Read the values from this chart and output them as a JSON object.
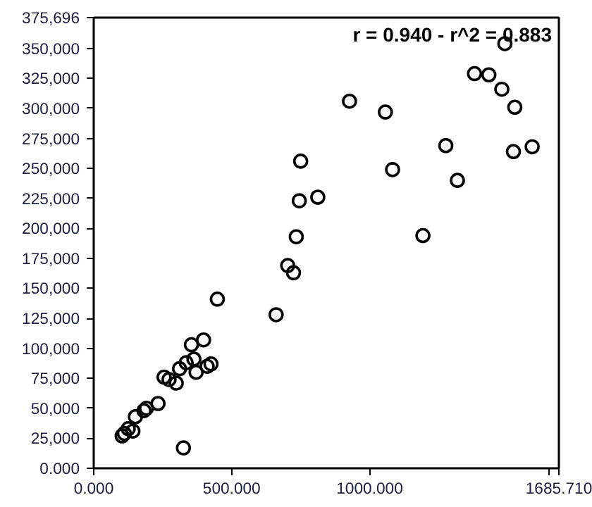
{
  "chart_data": {
    "type": "scatter",
    "marker": "circle",
    "grid": false,
    "annotations": [
      "r = 0.940 - r^2 = 0.883"
    ],
    "xlim": [
      0,
      1685.71
    ],
    "ylim": [
      0,
      375696
    ],
    "xticks": [
      {
        "value": 0,
        "label": "0.000"
      },
      {
        "value": 500,
        "label": "500.000"
      },
      {
        "value": 1000,
        "label": "1000.000"
      },
      {
        "value": 1650,
        "label": null
      },
      {
        "value": 1685.71,
        "label": "1685.710"
      }
    ],
    "yticks": [
      {
        "value": 0,
        "label": "0.000"
      },
      {
        "value": 25000,
        "label": "25,000"
      },
      {
        "value": 50000,
        "label": "50,000"
      },
      {
        "value": 75000,
        "label": "75,000"
      },
      {
        "value": 100000,
        "label": "100,000"
      },
      {
        "value": 125000,
        "label": "125,000"
      },
      {
        "value": 150000,
        "label": "150,000"
      },
      {
        "value": 175000,
        "label": "175,000"
      },
      {
        "value": 200000,
        "label": "200,000"
      },
      {
        "value": 225000,
        "label": "225,000"
      },
      {
        "value": 250000,
        "label": "250,000"
      },
      {
        "value": 275000,
        "label": "275,000"
      },
      {
        "value": 300000,
        "label": "300,000"
      },
      {
        "value": 325000,
        "label": "325,000"
      },
      {
        "value": 350000,
        "label": "350,000"
      },
      {
        "value": 375696,
        "label": "375,696"
      }
    ],
    "series": [
      {
        "color": "#000000",
        "x": [
          1490,
          1380,
          1432,
          1479,
          1526,
          927,
          1057,
          1276,
          1521,
          1589,
          1083,
          1318,
          750,
          745,
          812,
          1193,
          734,
          703,
          724,
          448,
          661,
          398,
          354,
          363,
          335,
          311,
          371,
          411,
          425,
          255,
          273,
          299,
          233,
          191,
          182,
          151,
          125,
          142,
          111,
          103,
          325
        ],
        "values": [
          354000,
          329000,
          328000,
          316000,
          301000,
          306000,
          297000,
          269000,
          264000,
          268000,
          249000,
          240000,
          256000,
          223000,
          226000,
          194000,
          193000,
          169000,
          163000,
          141000,
          128000,
          107000,
          103000,
          91000,
          88000,
          83000,
          80000,
          85000,
          87000,
          76000,
          74000,
          71000,
          54000,
          50000,
          48000,
          43000,
          33000,
          31000,
          29000,
          27000,
          17000
        ]
      }
    ]
  }
}
